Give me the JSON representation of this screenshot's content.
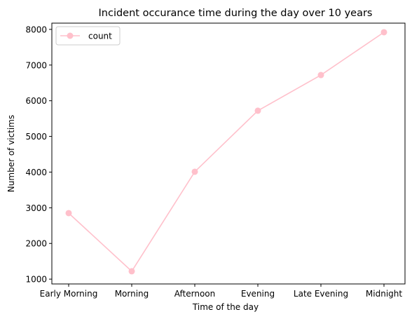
{
  "chart_data": {
    "type": "line",
    "title": "Incident occurance time during the day over 10 years",
    "xlabel": "Time of the day",
    "ylabel": "Number of victims",
    "categories": [
      "Early Morning",
      "Morning",
      "Afternoon",
      "Evening",
      "Late Evening",
      "Midnight"
    ],
    "series": [
      {
        "name": "count",
        "values": [
          2850,
          1220,
          4010,
          5720,
          6720,
          7920
        ]
      }
    ],
    "ylim": [
      865,
      8175
    ],
    "yticks": [
      1000,
      2000,
      3000,
      4000,
      5000,
      6000,
      7000,
      8000
    ],
    "grid": false,
    "legend": "top-left",
    "line_color": "#ffc0cb"
  }
}
